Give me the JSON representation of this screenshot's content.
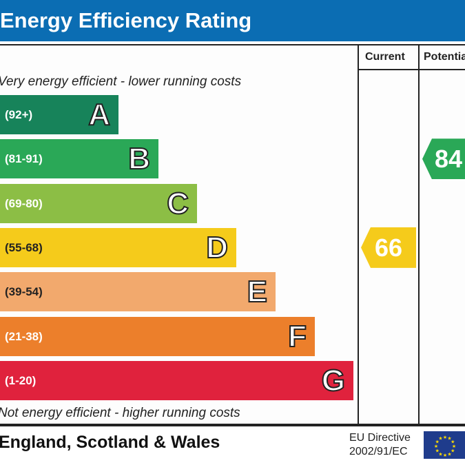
{
  "header": {
    "title": "Energy Efficiency Rating"
  },
  "columns": {
    "current": "Current",
    "potential": "Potential"
  },
  "notes": {
    "top": "Very energy efficient - lower running costs",
    "bottom": "Not energy efficient - higher running costs"
  },
  "footer": {
    "region": "England, Scotland & Wales",
    "directive_line1": "EU Directive",
    "directive_line2": "2002/91/EC"
  },
  "chart_data": {
    "type": "bar",
    "categories": [
      "A",
      "B",
      "C",
      "D",
      "E",
      "F",
      "G"
    ],
    "ranges": [
      "(92+)",
      "(81-91)",
      "(69-80)",
      "(55-68)",
      "(39-54)",
      "(21-38)",
      "(1-20)"
    ],
    "colors": [
      "#17835a",
      "#2aa857",
      "#8cbe45",
      "#f5cb1b",
      "#f2a96d",
      "#ec7f2b",
      "#e0223d"
    ],
    "current": {
      "value": 66,
      "band": "D",
      "color": "#f5cb1b"
    },
    "potential": {
      "value": 84,
      "band": "B",
      "color": "#2aa857"
    }
  }
}
